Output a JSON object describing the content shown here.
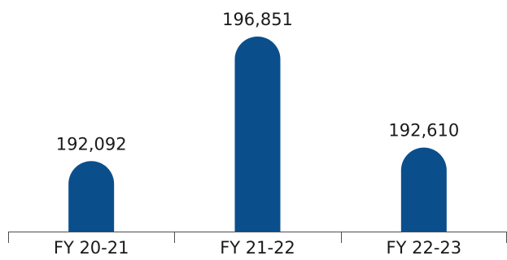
{
  "chart_data": {
    "type": "bar",
    "categories": [
      "FY 20-21",
      "FY 21-22",
      "FY 22-23"
    ],
    "values": [
      192092,
      196851,
      192610
    ],
    "value_labels": [
      "192,092",
      "196,851",
      "192,610"
    ],
    "title": "",
    "xlabel": "",
    "ylabel": "",
    "bar_color": "#0a4f8c",
    "bar_shape": "rounded-top",
    "grid": false,
    "legend": "none"
  }
}
